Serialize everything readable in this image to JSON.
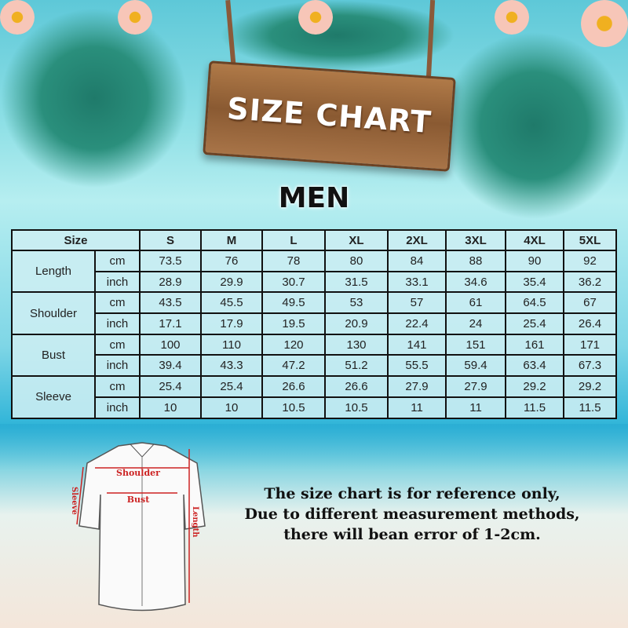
{
  "title": "SIZE CHART",
  "subtitle": "MEN",
  "table": {
    "header_label": "Size",
    "sizes": [
      "S",
      "M",
      "L",
      "XL",
      "2XL",
      "3XL",
      "4XL",
      "5XL"
    ],
    "rows": [
      {
        "measure": "Length",
        "cm": [
          "73.5",
          "76",
          "78",
          "80",
          "84",
          "88",
          "90",
          "92"
        ],
        "inch": [
          "28.9",
          "29.9",
          "30.7",
          "31.5",
          "33.1",
          "34.6",
          "35.4",
          "36.2"
        ]
      },
      {
        "measure": "Shoulder",
        "cm": [
          "43.5",
          "45.5",
          "49.5",
          "53",
          "57",
          "61",
          "64.5",
          "67"
        ],
        "inch": [
          "17.1",
          "17.9",
          "19.5",
          "20.9",
          "22.4",
          "24",
          "25.4",
          "26.4"
        ]
      },
      {
        "measure": "Bust",
        "cm": [
          "100",
          "110",
          "120",
          "130",
          "141",
          "151",
          "161",
          "171"
        ],
        "inch": [
          "39.4",
          "43.3",
          "47.2",
          "51.2",
          "55.5",
          "59.4",
          "63.4",
          "67.3"
        ]
      },
      {
        "measure": "Sleeve",
        "cm": [
          "25.4",
          "25.4",
          "26.6",
          "26.6",
          "27.9",
          "27.9",
          "29.2",
          "29.2"
        ],
        "inch": [
          "10",
          "10",
          "10.5",
          "10.5",
          "11",
          "11",
          "11.5",
          "11.5"
        ]
      }
    ],
    "unit_cm": "cm",
    "unit_inch": "inch"
  },
  "diagram": {
    "shoulder": "Shoulder",
    "bust": "Bust",
    "sleeve": "Sleeve",
    "length": "Length"
  },
  "note": [
    "The size chart is for reference only,",
    "Due to different measurement methods,",
    "there will bean error of 1-2cm."
  ]
}
